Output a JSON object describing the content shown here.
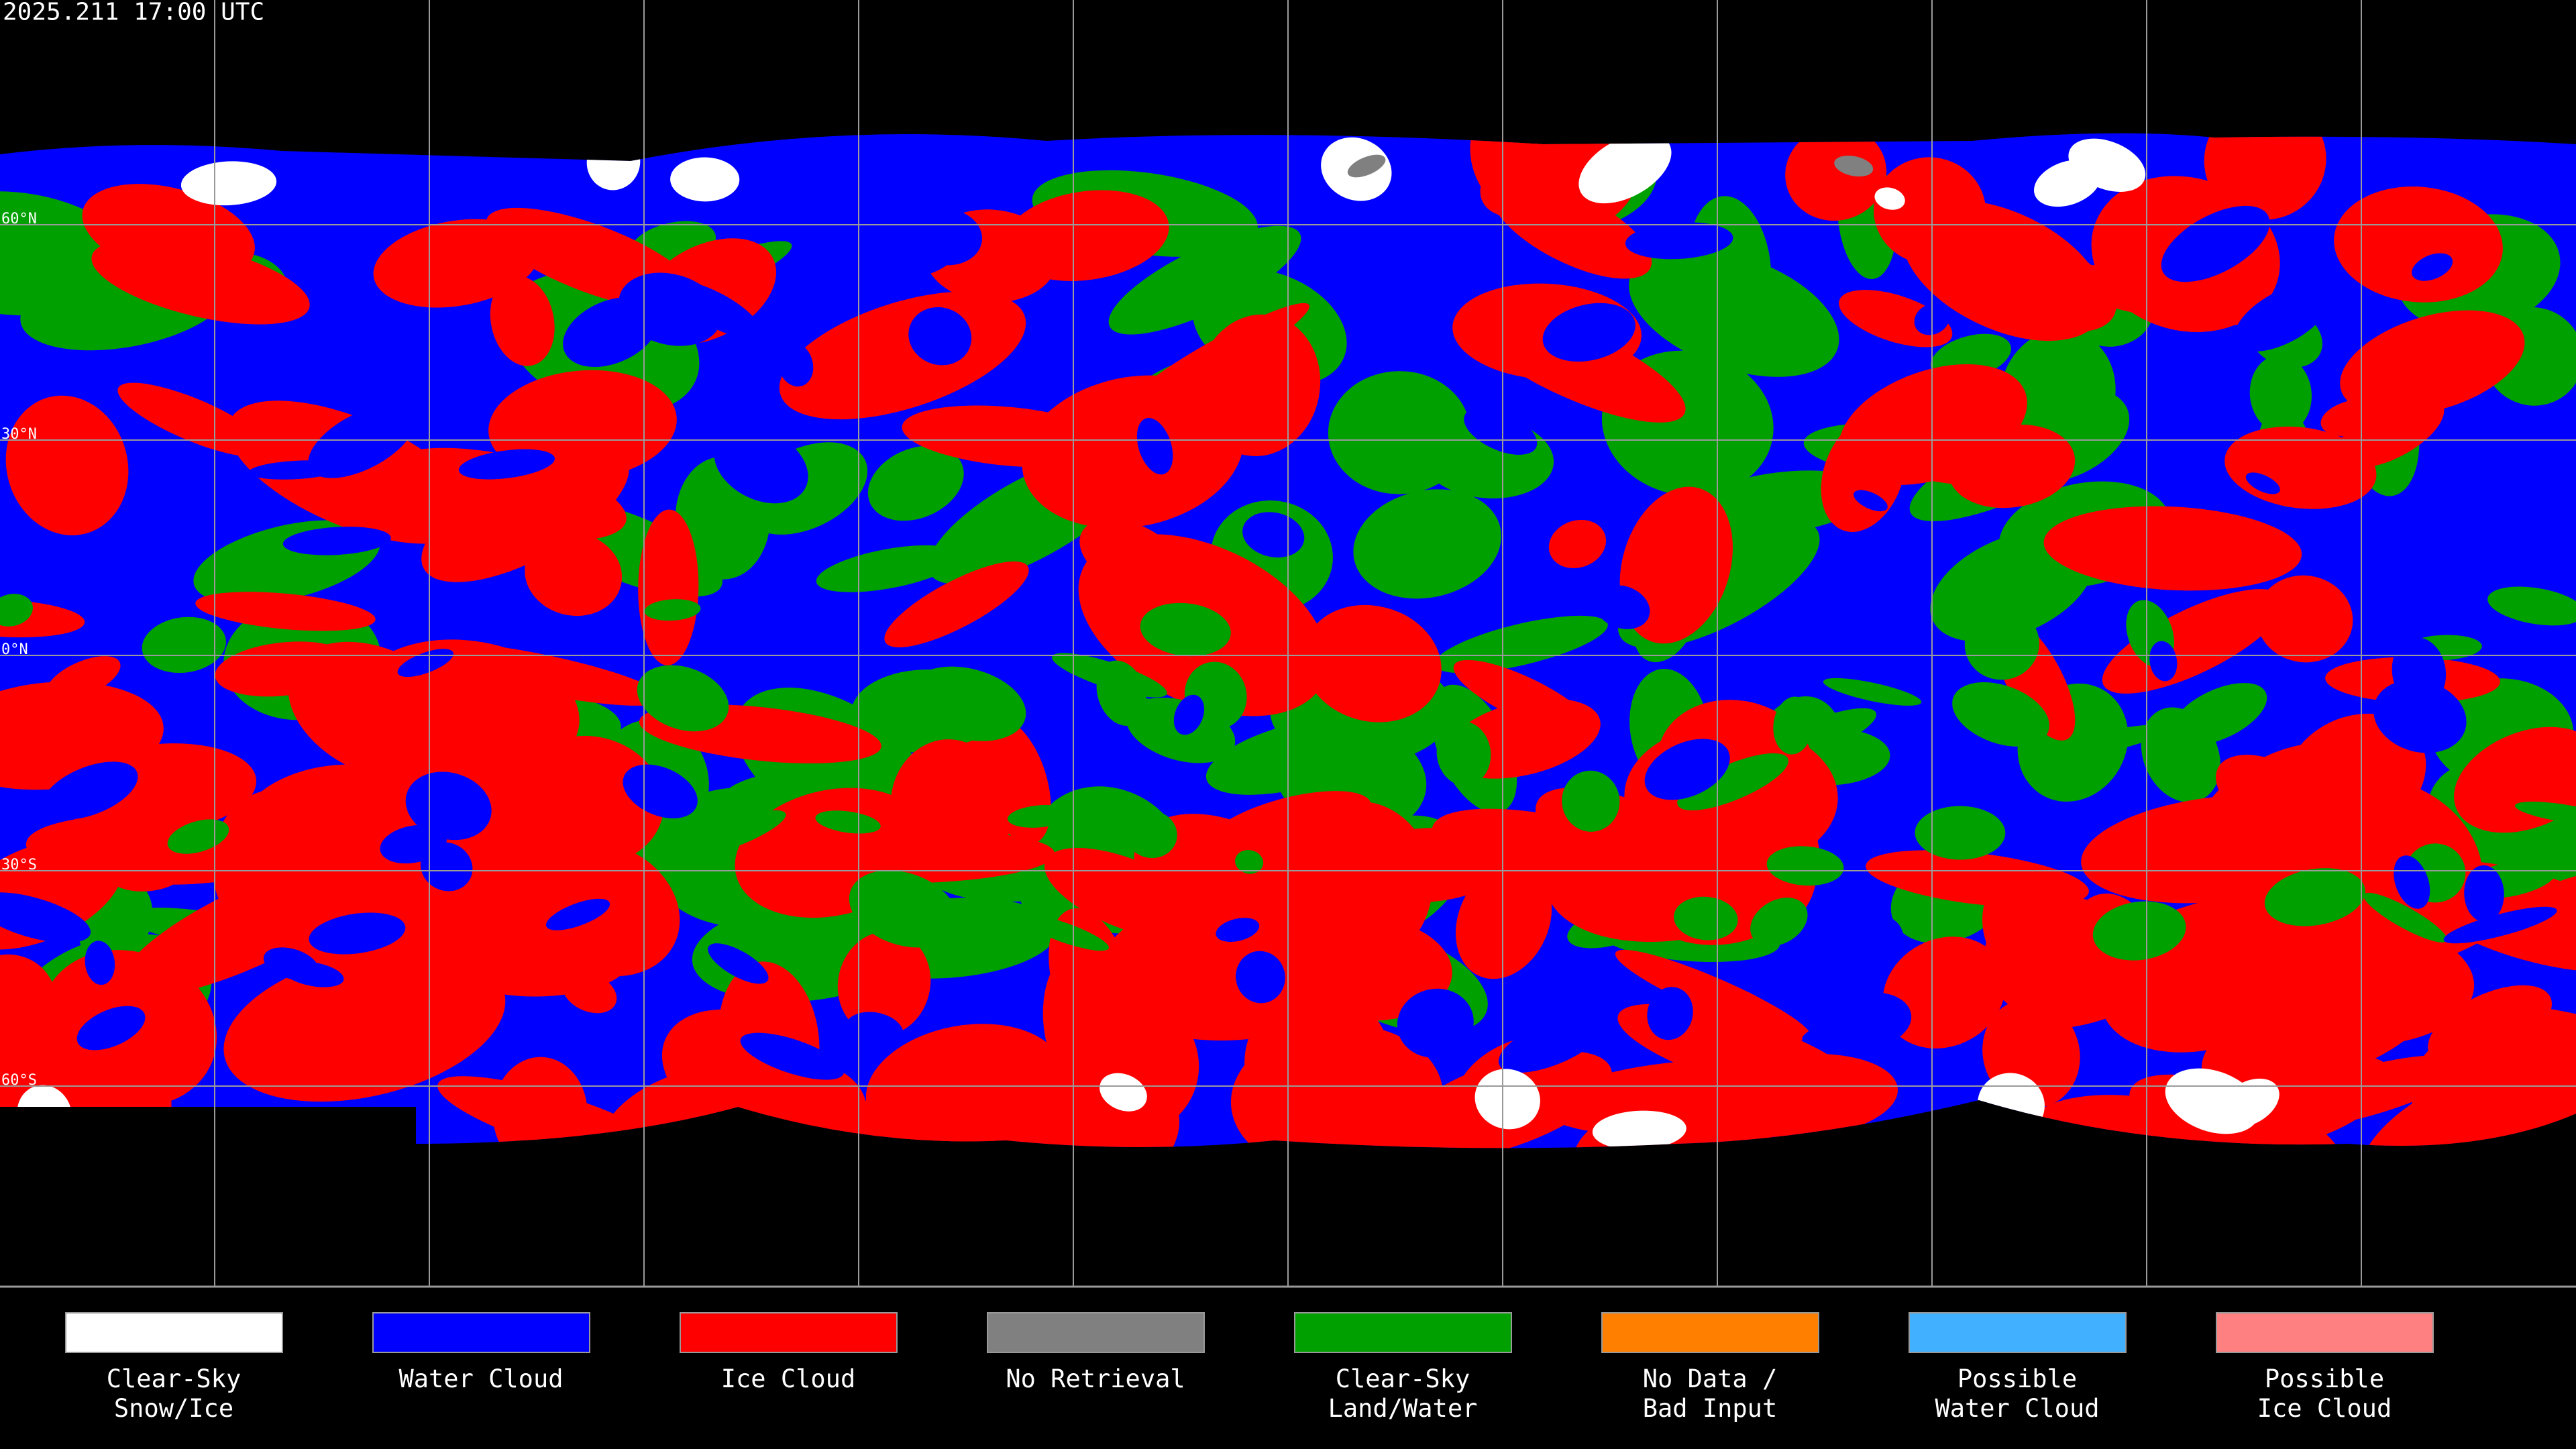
{
  "header": {
    "title": "2025.211 17:00 UTC"
  },
  "latitude_labels": [
    "60°N",
    "30°N",
    "0°N",
    "30°S",
    "60°S"
  ],
  "legend": [
    {
      "lines": [
        "Clear-Sky",
        "Snow/Ice"
      ],
      "color": "#ffffff"
    },
    {
      "lines": [
        "Water Cloud"
      ],
      "color": "#0000ff"
    },
    {
      "lines": [
        "Ice Cloud"
      ],
      "color": "#ff0000"
    },
    {
      "lines": [
        "No Retrieval"
      ],
      "color": "#808080"
    },
    {
      "lines": [
        "Clear-Sky",
        "Land/Water"
      ],
      "color": "#00a000"
    },
    {
      "lines": [
        "No Data /",
        "Bad Input"
      ],
      "color": "#ff8000"
    },
    {
      "lines": [
        "Possible",
        "Water Cloud"
      ],
      "color": "#40b0ff"
    },
    {
      "lines": [
        "Possible",
        "Ice Cloud"
      ],
      "color": "#ff8080"
    }
  ]
}
